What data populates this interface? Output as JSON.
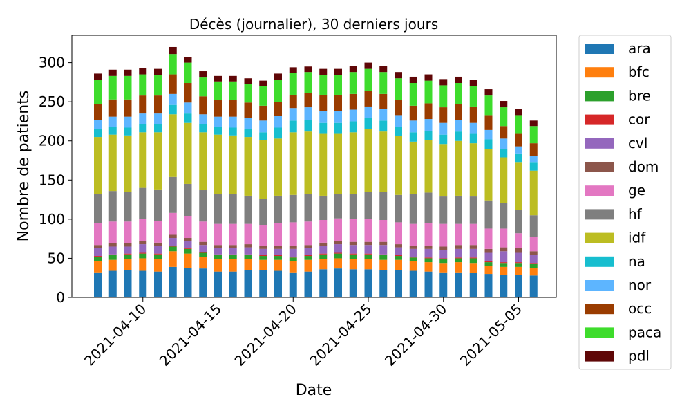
{
  "chart_data": {
    "type": "bar",
    "stacked": true,
    "title": "Décès (journalier), 30 derniers jours",
    "xlabel": "Date",
    "ylabel": "Nombre de patients",
    "ylim": [
      0,
      335
    ],
    "yticks": [
      0,
      50,
      100,
      150,
      200,
      250,
      300
    ],
    "legend_position": "outside-right",
    "grid": false,
    "x": [
      "2021-04-07",
      "2021-04-08",
      "2021-04-09",
      "2021-04-10",
      "2021-04-11",
      "2021-04-12",
      "2021-04-13",
      "2021-04-14",
      "2021-04-15",
      "2021-04-16",
      "2021-04-17",
      "2021-04-18",
      "2021-04-19",
      "2021-04-20",
      "2021-04-21",
      "2021-04-22",
      "2021-04-23",
      "2021-04-24",
      "2021-04-25",
      "2021-04-26",
      "2021-04-27",
      "2021-04-28",
      "2021-04-29",
      "2021-04-30",
      "2021-05-01",
      "2021-05-02",
      "2021-05-03",
      "2021-05-04",
      "2021-05-05",
      "2021-05-06"
    ],
    "xtick_labels": [
      "2021-04-10",
      "2021-04-15",
      "2021-04-20",
      "2021-04-25",
      "2021-04-30",
      "2021-05-05"
    ],
    "series": [
      {
        "name": "ara",
        "color": "#1f77b4",
        "values": [
          32,
          34,
          35,
          34,
          33,
          39,
          38,
          37,
          33,
          33,
          35,
          35,
          34,
          32,
          33,
          36,
          37,
          36,
          36,
          35,
          35,
          34,
          33,
          32,
          32,
          31,
          30,
          29,
          29,
          28
        ]
      },
      {
        "name": "bfc",
        "color": "#ff7f0e",
        "values": [
          14,
          14,
          14,
          16,
          16,
          20,
          18,
          15,
          16,
          16,
          14,
          13,
          14,
          14,
          15,
          13,
          13,
          13,
          13,
          13,
          13,
          12,
          12,
          12,
          13,
          13,
          10,
          10,
          10,
          10
        ]
      },
      {
        "name": "bre",
        "color": "#2ca02c",
        "values": [
          6,
          6,
          6,
          6,
          6,
          6,
          6,
          5,
          5,
          5,
          5,
          5,
          5,
          5,
          5,
          6,
          6,
          6,
          6,
          6,
          5,
          5,
          5,
          5,
          5,
          6,
          5,
          5,
          5,
          5
        ]
      },
      {
        "name": "cor",
        "color": "#d62728",
        "values": [
          1,
          1,
          1,
          1,
          1,
          1,
          1,
          1,
          1,
          1,
          1,
          1,
          1,
          1,
          1,
          1,
          1,
          1,
          1,
          1,
          1,
          1,
          1,
          1,
          1,
          1,
          1,
          1,
          1,
          1
        ]
      },
      {
        "name": "cvl",
        "color": "#9467bd",
        "values": [
          10,
          10,
          9,
          11,
          10,
          10,
          9,
          9,
          8,
          8,
          9,
          8,
          8,
          10,
          9,
          10,
          11,
          11,
          11,
          12,
          10,
          10,
          11,
          11,
          11,
          11,
          11,
          14,
          12,
          10
        ]
      },
      {
        "name": "dom",
        "color": "#8c564b",
        "values": [
          4,
          4,
          4,
          4,
          4,
          4,
          4,
          4,
          4,
          4,
          4,
          4,
          4,
          4,
          4,
          4,
          4,
          4,
          4,
          4,
          4,
          4,
          4,
          4,
          5,
          5,
          5,
          5,
          6,
          5
        ]
      },
      {
        "name": "ge",
        "color": "#e377c2",
        "values": [
          28,
          28,
          28,
          28,
          28,
          28,
          28,
          26,
          27,
          27,
          26,
          26,
          29,
          30,
          30,
          29,
          29,
          29,
          29,
          28,
          28,
          28,
          29,
          29,
          27,
          27,
          26,
          24,
          19,
          18
        ]
      },
      {
        "name": "hf",
        "color": "#7f7f7f",
        "values": [
          37,
          39,
          38,
          40,
          40,
          46,
          41,
          40,
          38,
          38,
          36,
          34,
          35,
          35,
          35,
          31,
          31,
          32,
          35,
          36,
          35,
          38,
          39,
          35,
          36,
          35,
          36,
          33,
          30,
          28
        ]
      },
      {
        "name": "idf",
        "color": "#bcbd22",
        "values": [
          73,
          72,
          72,
          71,
          73,
          80,
          78,
          74,
          76,
          75,
          75,
          75,
          73,
          80,
          80,
          79,
          77,
          79,
          80,
          77,
          75,
          67,
          67,
          67,
          70,
          68,
          66,
          58,
          61,
          57
        ]
      },
      {
        "name": "na",
        "color": "#17becf",
        "values": [
          10,
          10,
          10,
          10,
          10,
          12,
          12,
          10,
          10,
          10,
          10,
          10,
          14,
          15,
          15,
          14,
          14,
          14,
          14,
          14,
          12,
          12,
          12,
          12,
          12,
          12,
          12,
          11,
          11,
          11
        ]
      },
      {
        "name": "nor",
        "color": "#5db5ff",
        "values": [
          12,
          13,
          14,
          14,
          14,
          14,
          14,
          13,
          13,
          14,
          14,
          15,
          15,
          16,
          16,
          15,
          15,
          15,
          15,
          15,
          15,
          15,
          15,
          15,
          15,
          14,
          12,
          13,
          9,
          8
        ]
      },
      {
        "name": "occ",
        "color": "#9a3c00",
        "values": [
          20,
          22,
          22,
          23,
          23,
          25,
          25,
          23,
          21,
          21,
          20,
          19,
          18,
          17,
          18,
          21,
          21,
          20,
          20,
          19,
          19,
          19,
          20,
          20,
          20,
          21,
          19,
          16,
          16,
          16
        ]
      },
      {
        "name": "paca",
        "color": "#3edc2c",
        "values": [
          31,
          30,
          30,
          27,
          26,
          26,
          26,
          24,
          24,
          24,
          24,
          25,
          28,
          28,
          27,
          25,
          25,
          28,
          28,
          28,
          28,
          29,
          29,
          28,
          27,
          26,
          25,
          24,
          24,
          22
        ]
      },
      {
        "name": "pdl",
        "color": "#5f0707",
        "values": [
          8,
          8,
          8,
          8,
          8,
          9,
          7,
          8,
          7,
          7,
          7,
          7,
          8,
          7,
          7,
          8,
          8,
          8,
          8,
          8,
          8,
          8,
          8,
          8,
          8,
          8,
          8,
          8,
          8,
          7
        ]
      }
    ]
  }
}
